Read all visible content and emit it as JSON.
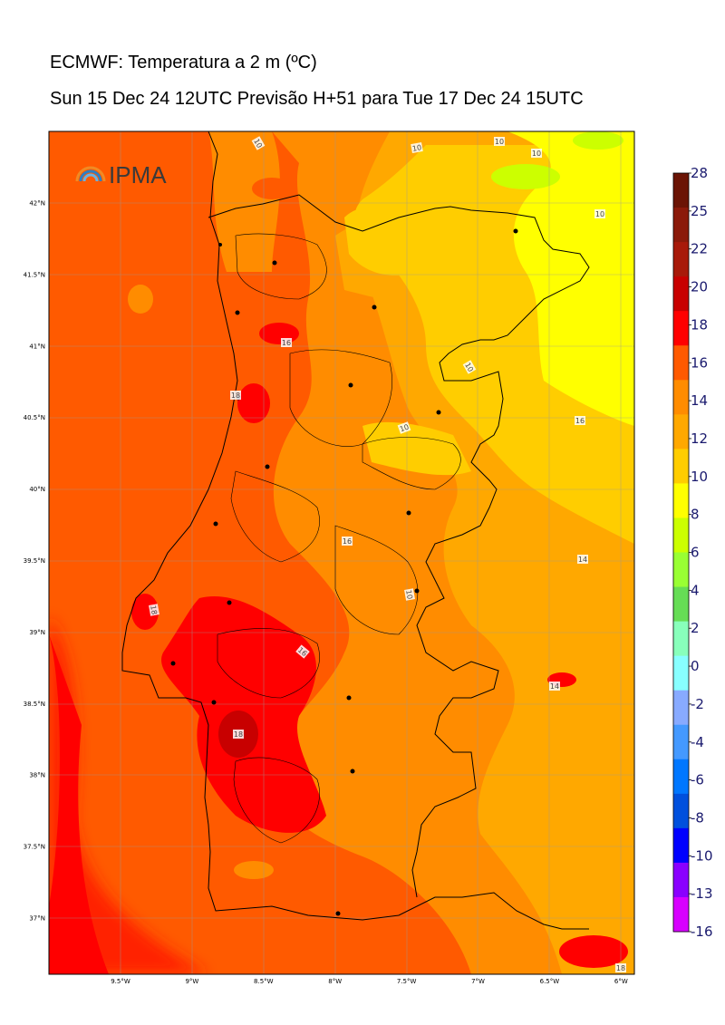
{
  "header": {
    "title": "ECMWF: Temperatura a 2 m (ºC)",
    "subtitle": "Sun 15 Dec 24 12UTC Previsão H+51 para Tue 17 Dec 24 15UTC"
  },
  "logo": {
    "text": "IPMA"
  },
  "map": {
    "lat_labels": [
      "42°N",
      "41.5°N",
      "41°N",
      "40.5°N",
      "40°N",
      "39.5°N",
      "39°N",
      "38.5°N",
      "38°N",
      "37.5°N",
      "37°N"
    ],
    "lon_labels": [
      "9.5°W",
      "9°W",
      "8.5°W",
      "8°W",
      "7.5°W",
      "7°W",
      "6.5°W",
      "6°W"
    ],
    "contour_labels": [
      "10",
      "10",
      "10",
      "10",
      "10",
      "10",
      "10",
      "16",
      "16",
      "10",
      "14",
      "18",
      "16",
      "14",
      "18",
      "16",
      "18",
      "18"
    ]
  },
  "colorbar": {
    "labels": [
      "28",
      "25",
      "22",
      "20",
      "18",
      "16",
      "14",
      "12",
      "10",
      "8",
      "6",
      "4",
      "2",
      "0",
      "-2",
      "-4",
      "-6",
      "-8",
      "-10",
      "-13",
      "-16"
    ],
    "colors": [
      "#6b1405",
      "#8b1a0a",
      "#a81a0a",
      "#c80000",
      "#ff0000",
      "#ff5a00",
      "#ff8c00",
      "#ffa800",
      "#ffcd00",
      "#ffff00",
      "#ccff00",
      "#99ff33",
      "#66dd55",
      "#88ffbb",
      "#88ffff",
      "#88aaff",
      "#4499ff",
      "#0077ff",
      "#0050dd",
      "#0000ff",
      "#8a00ff",
      "#d700ff"
    ]
  }
}
